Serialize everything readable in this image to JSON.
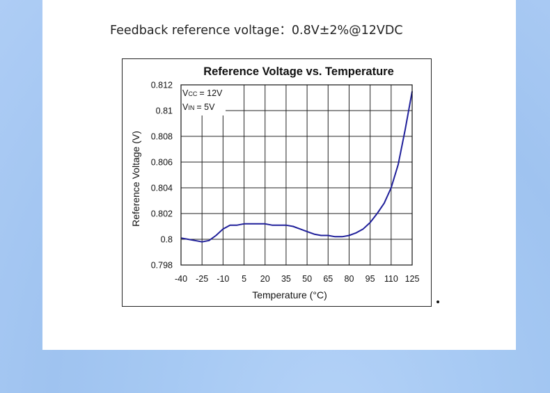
{
  "caption": "Feedback reference voltage：0.8V±2%@12VDC",
  "chart_data": {
    "type": "line",
    "title": "Reference Voltage vs. Temperature",
    "xlabel": "Temperature (°C)",
    "ylabel": "Reference Voltage (V)",
    "xlim": [
      -40,
      125
    ],
    "ylim": [
      0.798,
      0.812
    ],
    "x_ticks": [
      -40,
      -25,
      -10,
      5,
      20,
      35,
      50,
      65,
      80,
      95,
      110,
      125
    ],
    "x_tick_labels": [
      "-40",
      "-25",
      "-10",
      "5",
      "20",
      "35",
      "50",
      "65",
      "80",
      "95",
      "110",
      "125"
    ],
    "y_ticks": [
      0.798,
      0.8,
      0.802,
      0.804,
      0.806,
      0.808,
      0.81,
      0.812
    ],
    "y_tick_labels": [
      "0.798",
      "0.8",
      "0.802",
      "0.804",
      "0.806",
      "0.808",
      "0.81",
      "0.812"
    ],
    "grid": true,
    "annotations": {
      "vcc_main": "V",
      "vcc_sub": "CC",
      "vcc_value": "= 12V",
      "vin_main": "V",
      "vin_sub": "IN",
      "vin_value": "= 5V"
    },
    "series": [
      {
        "color": "#1f1f9a",
        "x": [
          -40,
          -35,
          -30,
          -25,
          -20,
          -15,
          -10,
          -5,
          0,
          5,
          10,
          15,
          20,
          25,
          30,
          35,
          40,
          45,
          50,
          55,
          60,
          65,
          70,
          75,
          80,
          85,
          90,
          95,
          100,
          105,
          110,
          115,
          120,
          125
        ],
        "y": [
          0.8001,
          0.8,
          0.7999,
          0.7998,
          0.7999,
          0.8003,
          0.8008,
          0.8011,
          0.8011,
          0.8012,
          0.8012,
          0.8012,
          0.8012,
          0.8011,
          0.8011,
          0.8011,
          0.801,
          0.8008,
          0.8006,
          0.8004,
          0.8003,
          0.8003,
          0.8002,
          0.8002,
          0.8003,
          0.8005,
          0.8008,
          0.8013,
          0.802,
          0.8028,
          0.804,
          0.8058,
          0.8085,
          0.8115
        ]
      }
    ]
  }
}
